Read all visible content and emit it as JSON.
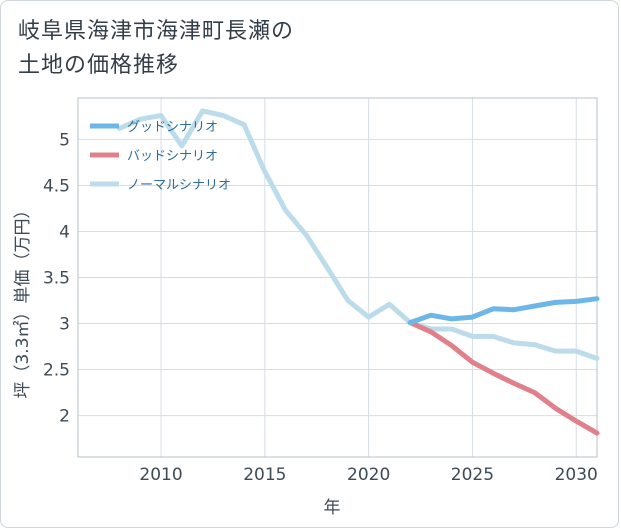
{
  "title_line1": "岐阜県海津市海津町長瀬の",
  "title_line2": "土地の価格推移",
  "chart_data": {
    "type": "line",
    "xlabel": "年",
    "ylabel": "坪（3.3㎡）単価（万円）",
    "xlim": [
      2006,
      2031
    ],
    "ylim": [
      1.55,
      5.45
    ],
    "xticks": [
      2010,
      2015,
      2020,
      2025,
      2030
    ],
    "yticks": [
      2,
      2.5,
      3,
      3.5,
      4,
      4.5,
      5
    ],
    "grid": true,
    "legend_position": "top-left",
    "series": [
      {
        "name": "グッドシナリオ",
        "color": "#6cb6e8",
        "x": [
          2022,
          2023,
          2024,
          2025,
          2026,
          2027,
          2028,
          2029,
          2030,
          2031
        ],
        "y": [
          3.01,
          3.09,
          3.05,
          3.07,
          3.16,
          3.15,
          3.19,
          3.23,
          3.24,
          3.27
        ]
      },
      {
        "name": "バッドシナリオ",
        "color": "#e0808a",
        "x": [
          2022,
          2023,
          2024,
          2025,
          2026,
          2027,
          2028,
          2029,
          2030,
          2031
        ],
        "y": [
          3.01,
          2.91,
          2.76,
          2.58,
          2.46,
          2.35,
          2.25,
          2.08,
          1.94,
          1.81
        ]
      },
      {
        "name": "ノーマルシナリオ",
        "color": "#bcdcec",
        "x": [
          2008,
          2009,
          2010,
          2011,
          2012,
          2013,
          2014,
          2015,
          2016,
          2017,
          2018,
          2019,
          2020,
          2021,
          2022,
          2023,
          2024,
          2025,
          2026,
          2027,
          2028,
          2029,
          2030,
          2031
        ],
        "y": [
          5.12,
          5.22,
          5.26,
          4.93,
          5.31,
          5.26,
          5.16,
          4.65,
          4.23,
          3.96,
          3.61,
          3.25,
          3.07,
          3.21,
          3.01,
          2.94,
          2.94,
          2.86,
          2.86,
          2.79,
          2.77,
          2.7,
          2.7,
          2.62
        ]
      }
    ]
  }
}
